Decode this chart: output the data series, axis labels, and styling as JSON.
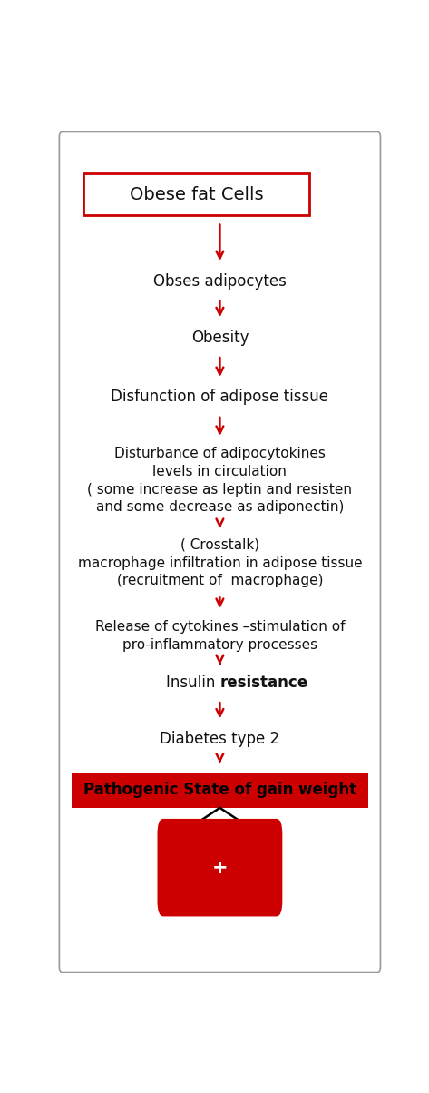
{
  "bg_color": "#ffffff",
  "border_color": "#999999",
  "red_color": "#cc0000",
  "box1_text": "Obese fat Cells",
  "box1_border": "#cc0000",
  "box1_bg": "#ffffff",
  "box1_text_color": "#111111",
  "steps": [
    {
      "text": "Obses adipocytes",
      "fontsize": 12,
      "bold": false,
      "italic": false
    },
    {
      "text": "Obesity",
      "fontsize": 12,
      "bold": false,
      "italic": false
    },
    {
      "text": "Disfunction of adipose tissue",
      "fontsize": 12,
      "bold": false,
      "italic": false
    },
    {
      "text": "Disturbance of adipocytokines\nlevels in circulation\n( some increase as leptin and resisten\nand some decrease as adiponectin)",
      "fontsize": 11,
      "bold": false,
      "italic": false
    },
    {
      "text": "( Crosstalk)\nmacrophage infiltration in adipose tissue\n(recruitment of  macrophage)",
      "fontsize": 11,
      "bold": false,
      "italic": false
    },
    {
      "text": "Release of cytokines –stimulation of\npro-inflammatory processes",
      "fontsize": 11,
      "bold": false,
      "italic": false
    },
    {
      "text": "Insulin resistance",
      "fontsize": 12,
      "bold": false,
      "italic": false
    },
    {
      "text": "Diabetes type 2",
      "fontsize": 12,
      "bold": false,
      "italic": false
    }
  ],
  "insulin_normal": "Insulin ",
  "insulin_bold": "resistance",
  "box2_text": "Pathogenic State of gain weight",
  "box2_bg": "#cc0000",
  "box2_text_color": "#000000",
  "arrow_color": "#cc0000",
  "fig_width": 4.73,
  "fig_height": 12.04,
  "arrow_lw": 1.8,
  "arrow_mutation_scale": 14
}
